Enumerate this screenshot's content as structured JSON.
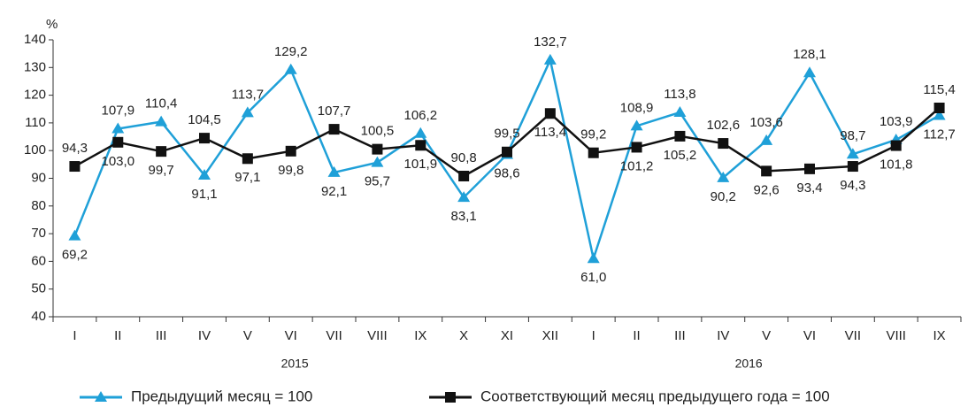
{
  "chart_data": {
    "type": "line",
    "y_unit": "%",
    "groups": [
      {
        "name": "2015",
        "categories": [
          "I",
          "II",
          "III",
          "IV",
          "V",
          "VI",
          "VII",
          "VIII",
          "IX",
          "X",
          "XI",
          "XII"
        ]
      },
      {
        "name": "2016",
        "categories": [
          "I",
          "II",
          "III",
          "IV",
          "V",
          "VI",
          "VII",
          "VIII",
          "IX"
        ]
      }
    ],
    "series": [
      {
        "name": "Предыдущий месяц = 100",
        "color": "#1fa0d8",
        "marker": "triangle",
        "values": [
          69.2,
          107.9,
          110.4,
          91.1,
          113.7,
          129.2,
          92.1,
          95.7,
          106.2,
          83.1,
          98.6,
          132.7,
          61.0,
          108.9,
          113.8,
          90.2,
          103.6,
          128.1,
          98.7,
          103.9,
          112.7
        ],
        "value_labels": [
          "69,2",
          "107,9",
          "110,4",
          "91,1",
          "113,7",
          "129,2",
          "92,1",
          "95,7",
          "106,2",
          "83,1",
          "98,6",
          "132,7",
          "61,0",
          "108,9",
          "113,8",
          "90,2",
          "103,6",
          "128,1",
          "98,7",
          "103,9",
          "112,7"
        ]
      },
      {
        "name": "Соответствующий месяц предыдущего года = 100",
        "color": "#111111",
        "marker": "square",
        "values": [
          94.3,
          103.0,
          99.7,
          104.5,
          97.1,
          99.8,
          107.7,
          100.5,
          101.9,
          90.8,
          99.5,
          113.4,
          99.2,
          101.2,
          105.2,
          102.6,
          92.6,
          93.4,
          94.3,
          101.8,
          115.4
        ],
        "value_labels": [
          "94,3",
          "103,0",
          "99,7",
          "104,5",
          "97,1",
          "99,8",
          "107,7",
          "100,5",
          "101,9",
          "90,8",
          "99,5",
          "113,4",
          "99,2",
          "101,2",
          "105,2",
          "102,6",
          "92,6",
          "93,4",
          "94,3",
          "101,8",
          "115,4"
        ]
      }
    ],
    "ylim": [
      40,
      140
    ],
    "yticks": [
      40,
      50,
      60,
      70,
      80,
      90,
      100,
      110,
      120,
      130,
      140
    ],
    "legend": "bottom"
  }
}
